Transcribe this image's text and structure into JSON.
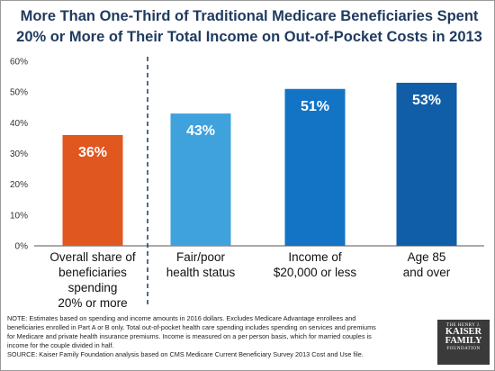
{
  "title": "More Than One-Third of Traditional Medicare Beneficiaries Spent 20% or More of Their Total Income on Out-of-Pocket Costs in 2013",
  "chart_data": {
    "type": "bar",
    "title": "More Than One-Third of Traditional Medicare Beneficiaries Spent 20% or More of Their Total Income on Out-of-Pocket Costs in 2013",
    "categories": [
      "Overall share of beneficiaries spending 20% or more",
      "Fair/poor health status",
      "Income of $20,000 or less",
      "Age 85 and over"
    ],
    "values": [
      36,
      43,
      51,
      53
    ],
    "value_labels": [
      "36%",
      "43%",
      "51%",
      "53%"
    ],
    "bar_colors": [
      "#e0571f",
      "#3fa2dc",
      "#1374c6",
      "#115ea8"
    ],
    "ylim": [
      0,
      60
    ],
    "yticks": [
      0,
      10,
      20,
      30,
      40,
      50,
      60
    ],
    "ytick_labels": [
      "0%",
      "10%",
      "20%",
      "30%",
      "40%",
      "50%",
      "60%"
    ],
    "xlabel": "",
    "ylabel": "",
    "grid": false,
    "divider": "dashed line after first category"
  },
  "category_lines": [
    [
      "Overall share of",
      "beneficiaries",
      "spending",
      "20% or more"
    ],
    [
      "Fair/poor",
      "health status"
    ],
    [
      "Income of",
      "$20,000 or less"
    ],
    [
      "Age 85",
      "and over"
    ]
  ],
  "notes": {
    "note": "NOTE: Estimates based on spending and income amounts in 2016 dollars. Excludes Medicare Advantage enrollees and beneficiaries enrolled in Part A or B only. Total out-of-pocket health care spending includes spending on services and premiums for Medicare and private health insurance premiums.  Income is measured on a per person basis, which for married couples is income for the couple divided in half.",
    "source": "SOURCE: Kaiser Family Foundation  analysis based on CMS Medicare Current Beneficiary Survey 2013 Cost and Use file."
  },
  "logo": {
    "top": "THE HENRY J.",
    "line1": "KAISER",
    "line2": "FAMILY",
    "bottom": "FOUNDATION"
  }
}
